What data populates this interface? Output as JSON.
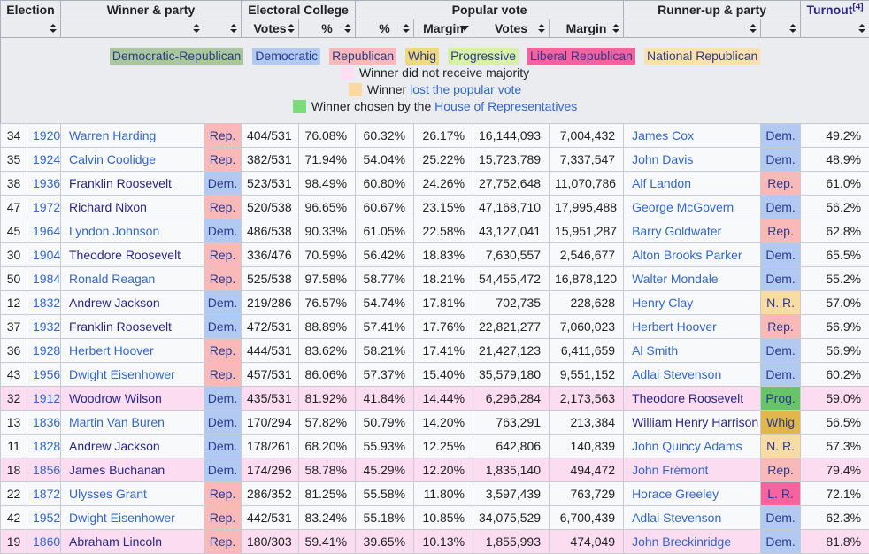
{
  "colors": {
    "link": "#3366CC",
    "visited_link": "#2B2787",
    "party_text": "#2B3A8F",
    "header_bg": "#EAECF0",
    "row_bg": "#F8F9FA",
    "pink_row_bg": "#FBDCF0",
    "text": "#202122"
  },
  "party_colors": {
    "Rep.": "#F8B9B8",
    "Dem.": "#B2CAF2",
    "N. R.": "#F9DCA4",
    "Whig": "#E0B64D",
    "Prog.": "#68C567",
    "L. R.": "#F7629F"
  },
  "header": {
    "groups": [
      {
        "label": "Election",
        "colspan": 2
      },
      {
        "label": "Winner & party",
        "colspan": 2
      },
      {
        "label": "Electoral College",
        "colspan": 2
      },
      {
        "label": "Popular vote",
        "colspan": 4
      },
      {
        "label": "Runner-up & party",
        "colspan": 2
      },
      {
        "label": "Turnout",
        "sup": "[4]",
        "colspan": 1,
        "is_link": true
      }
    ],
    "sub": [
      {
        "label": "",
        "colspan": 2,
        "sort": "both",
        "name": "election"
      },
      {
        "label": "",
        "sort": "both",
        "name": "winner"
      },
      {
        "label": "",
        "sort": "both",
        "name": "winner-party"
      },
      {
        "label": "Votes",
        "sort": "both",
        "name": "ec-votes"
      },
      {
        "label": "%",
        "sort": "both",
        "name": "ec-percent"
      },
      {
        "label": "%",
        "sort": "both",
        "name": "pv-percent"
      },
      {
        "label": "Margin",
        "sort": "desc",
        "name": "pv-margin-percent"
      },
      {
        "label": "Votes",
        "sort": "both",
        "name": "pv-votes"
      },
      {
        "label": "Margin",
        "sort": "both",
        "name": "pv-margin-votes"
      },
      {
        "label": "",
        "sort": "both",
        "name": "runner-up"
      },
      {
        "label": "",
        "sort": "both",
        "name": "runner-party"
      },
      {
        "label": "",
        "sort": "both",
        "name": "turnout"
      }
    ]
  },
  "legend": {
    "parties": [
      {
        "label": "Democratic-Republican",
        "color": "#A9C79B"
      },
      {
        "label": "Democratic",
        "color": "#B2CAF2"
      },
      {
        "label": "Republican",
        "color": "#F8B9B8"
      },
      {
        "label": "Whig",
        "color": "#EFD97F"
      },
      {
        "label": "Progressive",
        "color": "#D7F2A6"
      },
      {
        "label": "Liberal Republican",
        "color": "#F7629F"
      },
      {
        "label": "National Republican",
        "color": "#FBE2AC"
      }
    ],
    "notes": [
      {
        "swatch": "#FFDDF2",
        "segments": [
          {
            "text": "Winner did not receive majority",
            "link": false
          }
        ]
      },
      {
        "swatch": "#FAD8A0",
        "segments": [
          {
            "text": "Winner ",
            "link": false
          },
          {
            "text": "lost the popular vote",
            "link": true
          }
        ]
      },
      {
        "swatch": "#79DE79",
        "segments": [
          {
            "text": "Winner chosen by the ",
            "link": false
          },
          {
            "text": "House of Representatives",
            "link": true
          }
        ]
      }
    ]
  },
  "rows": [
    {
      "no": "34",
      "year": "1920",
      "winner": "Warren Harding",
      "winner_visited": false,
      "winner_party": "Rep.",
      "ec_votes": "404/531",
      "ec_pct": "76.08%",
      "pv_pct": "60.32%",
      "margin_pct": "26.17%",
      "pv_votes": "16,144,093",
      "margin_votes": "7,004,432",
      "runner": "James Cox",
      "runner_visited": false,
      "runner_party": "Dem.",
      "turnout": "49.2%",
      "highlight": null
    },
    {
      "no": "35",
      "year": "1924",
      "winner": "Calvin Coolidge",
      "winner_visited": false,
      "winner_party": "Rep.",
      "ec_votes": "382/531",
      "ec_pct": "71.94%",
      "pv_pct": "54.04%",
      "margin_pct": "25.22%",
      "pv_votes": "15,723,789",
      "margin_votes": "7,337,547",
      "runner": "John Davis",
      "runner_visited": false,
      "runner_party": "Dem.",
      "turnout": "48.9%",
      "highlight": null
    },
    {
      "no": "38",
      "year": "1936",
      "winner": "Franklin Roosevelt",
      "winner_visited": true,
      "winner_party": "Dem.",
      "ec_votes": "523/531",
      "ec_pct": "98.49%",
      "pv_pct": "60.80%",
      "margin_pct": "24.26%",
      "pv_votes": "27,752,648",
      "margin_votes": "11,070,786",
      "runner": "Alf Landon",
      "runner_visited": false,
      "runner_party": "Rep.",
      "turnout": "61.0%",
      "highlight": null
    },
    {
      "no": "47",
      "year": "1972",
      "winner": "Richard Nixon",
      "winner_visited": true,
      "winner_party": "Rep.",
      "ec_votes": "520/538",
      "ec_pct": "96.65%",
      "pv_pct": "60.67%",
      "margin_pct": "23.15%",
      "pv_votes": "47,168,710",
      "margin_votes": "17,995,488",
      "runner": "George McGovern",
      "runner_visited": false,
      "runner_party": "Dem.",
      "turnout": "56.2%",
      "highlight": null
    },
    {
      "no": "45",
      "year": "1964",
      "winner": "Lyndon Johnson",
      "winner_visited": false,
      "winner_party": "Dem.",
      "ec_votes": "486/538",
      "ec_pct": "90.33%",
      "pv_pct": "61.05%",
      "margin_pct": "22.58%",
      "pv_votes": "43,127,041",
      "margin_votes": "15,951,287",
      "runner": "Barry Goldwater",
      "runner_visited": false,
      "runner_party": "Rep.",
      "turnout": "62.8%",
      "highlight": null
    },
    {
      "no": "30",
      "year": "1904",
      "winner": "Theodore Roosevelt",
      "winner_visited": true,
      "winner_party": "Rep.",
      "ec_votes": "336/476",
      "ec_pct": "70.59%",
      "pv_pct": "56.42%",
      "margin_pct": "18.83%",
      "pv_votes": "7,630,557",
      "margin_votes": "2,546,677",
      "runner": "Alton Brooks Parker",
      "runner_visited": false,
      "runner_party": "Dem.",
      "turnout": "65.5%",
      "highlight": null
    },
    {
      "no": "50",
      "year": "1984",
      "winner": "Ronald Reagan",
      "winner_visited": false,
      "winner_party": "Rep.",
      "ec_votes": "525/538",
      "ec_pct": "97.58%",
      "pv_pct": "58.77%",
      "margin_pct": "18.21%",
      "pv_votes": "54,455,472",
      "margin_votes": "16,878,120",
      "runner": "Walter Mondale",
      "runner_visited": false,
      "runner_party": "Dem.",
      "turnout": "55.2%",
      "highlight": null
    },
    {
      "no": "12",
      "year": "1832",
      "winner": "Andrew Jackson",
      "winner_visited": true,
      "winner_party": "Dem.",
      "ec_votes": "219/286",
      "ec_pct": "76.57%",
      "pv_pct": "54.74%",
      "margin_pct": "17.81%",
      "pv_votes": "702,735",
      "margin_votes": "228,628",
      "runner": "Henry Clay",
      "runner_visited": false,
      "runner_party": "N. R.",
      "turnout": "57.0%",
      "highlight": null
    },
    {
      "no": "37",
      "year": "1932",
      "winner": "Franklin Roosevelt",
      "winner_visited": true,
      "winner_party": "Dem.",
      "ec_votes": "472/531",
      "ec_pct": "88.89%",
      "pv_pct": "57.41%",
      "margin_pct": "17.76%",
      "pv_votes": "22,821,277",
      "margin_votes": "7,060,023",
      "runner": "Herbert Hoover",
      "runner_visited": false,
      "runner_party": "Rep.",
      "turnout": "56.9%",
      "highlight": null
    },
    {
      "no": "36",
      "year": "1928",
      "winner": "Herbert Hoover",
      "winner_visited": false,
      "winner_party": "Rep.",
      "ec_votes": "444/531",
      "ec_pct": "83.62%",
      "pv_pct": "58.21%",
      "margin_pct": "17.41%",
      "pv_votes": "21,427,123",
      "margin_votes": "6,411,659",
      "runner": "Al Smith",
      "runner_visited": false,
      "runner_party": "Dem.",
      "turnout": "56.9%",
      "highlight": null
    },
    {
      "no": "43",
      "year": "1956",
      "winner": "Dwight Eisenhower",
      "winner_visited": false,
      "winner_party": "Rep.",
      "ec_votes": "457/531",
      "ec_pct": "86.06%",
      "pv_pct": "57.37%",
      "margin_pct": "15.40%",
      "pv_votes": "35,579,180",
      "margin_votes": "9,551,152",
      "runner": "Adlai Stevenson",
      "runner_visited": false,
      "runner_party": "Dem.",
      "turnout": "60.2%",
      "highlight": null
    },
    {
      "no": "32",
      "year": "1912",
      "winner": "Woodrow Wilson",
      "winner_visited": true,
      "winner_party": "Dem.",
      "ec_votes": "435/531",
      "ec_pct": "81.92%",
      "pv_pct": "41.84%",
      "margin_pct": "14.44%",
      "pv_votes": "6,296,284",
      "margin_votes": "2,173,563",
      "runner": "Theodore Roosevelt",
      "runner_visited": true,
      "runner_party": "Prog.",
      "turnout": "59.0%",
      "highlight": "pink"
    },
    {
      "no": "13",
      "year": "1836",
      "winner": "Martin Van Buren",
      "winner_visited": false,
      "winner_party": "Dem.",
      "ec_votes": "170/294",
      "ec_pct": "57.82%",
      "pv_pct": "50.79%",
      "margin_pct": "14.20%",
      "pv_votes": "763,291",
      "margin_votes": "213,384",
      "runner": "William Henry Harrison",
      "runner_visited": true,
      "runner_party": "Whig",
      "turnout": "56.5%",
      "highlight": null
    },
    {
      "no": "11",
      "year": "1828",
      "winner": "Andrew Jackson",
      "winner_visited": true,
      "winner_party": "Dem.",
      "ec_votes": "178/261",
      "ec_pct": "68.20%",
      "pv_pct": "55.93%",
      "margin_pct": "12.25%",
      "pv_votes": "642,806",
      "margin_votes": "140,839",
      "runner": "John Quincy Adams",
      "runner_visited": false,
      "runner_party": "N. R.",
      "turnout": "57.3%",
      "highlight": null
    },
    {
      "no": "18",
      "year": "1856",
      "winner": "James Buchanan",
      "winner_visited": true,
      "winner_party": "Dem.",
      "ec_votes": "174/296",
      "ec_pct": "58.78%",
      "pv_pct": "45.29%",
      "margin_pct": "12.20%",
      "pv_votes": "1,835,140",
      "margin_votes": "494,472",
      "runner": "John Frémont",
      "runner_visited": false,
      "runner_party": "Rep.",
      "turnout": "79.4%",
      "highlight": "pink"
    },
    {
      "no": "22",
      "year": "1872",
      "winner": "Ulysses Grant",
      "winner_visited": false,
      "winner_party": "Rep.",
      "ec_votes": "286/352",
      "ec_pct": "81.25%",
      "pv_pct": "55.58%",
      "margin_pct": "11.80%",
      "pv_votes": "3,597,439",
      "margin_votes": "763,729",
      "runner": "Horace Greeley",
      "runner_visited": false,
      "runner_party": "L. R.",
      "turnout": "72.1%",
      "highlight": null
    },
    {
      "no": "42",
      "year": "1952",
      "winner": "Dwight Eisenhower",
      "winner_visited": false,
      "winner_party": "Rep.",
      "ec_votes": "442/531",
      "ec_pct": "83.24%",
      "pv_pct": "55.18%",
      "margin_pct": "10.85%",
      "pv_votes": "34,075,529",
      "margin_votes": "6,700,439",
      "runner": "Adlai Stevenson",
      "runner_visited": false,
      "runner_party": "Dem.",
      "turnout": "62.3%",
      "highlight": null
    },
    {
      "no": "19",
      "year": "1860",
      "winner": "Abraham Lincoln",
      "winner_visited": true,
      "winner_party": "Rep.",
      "ec_votes": "180/303",
      "ec_pct": "59.41%",
      "pv_pct": "39.65%",
      "margin_pct": "10.13%",
      "pv_votes": "1,855,993",
      "margin_votes": "474,049",
      "runner": "John Breckinridge",
      "runner_visited": false,
      "runner_party": "Dem.",
      "turnout": "81.8%",
      "highlight": "pink"
    }
  ]
}
